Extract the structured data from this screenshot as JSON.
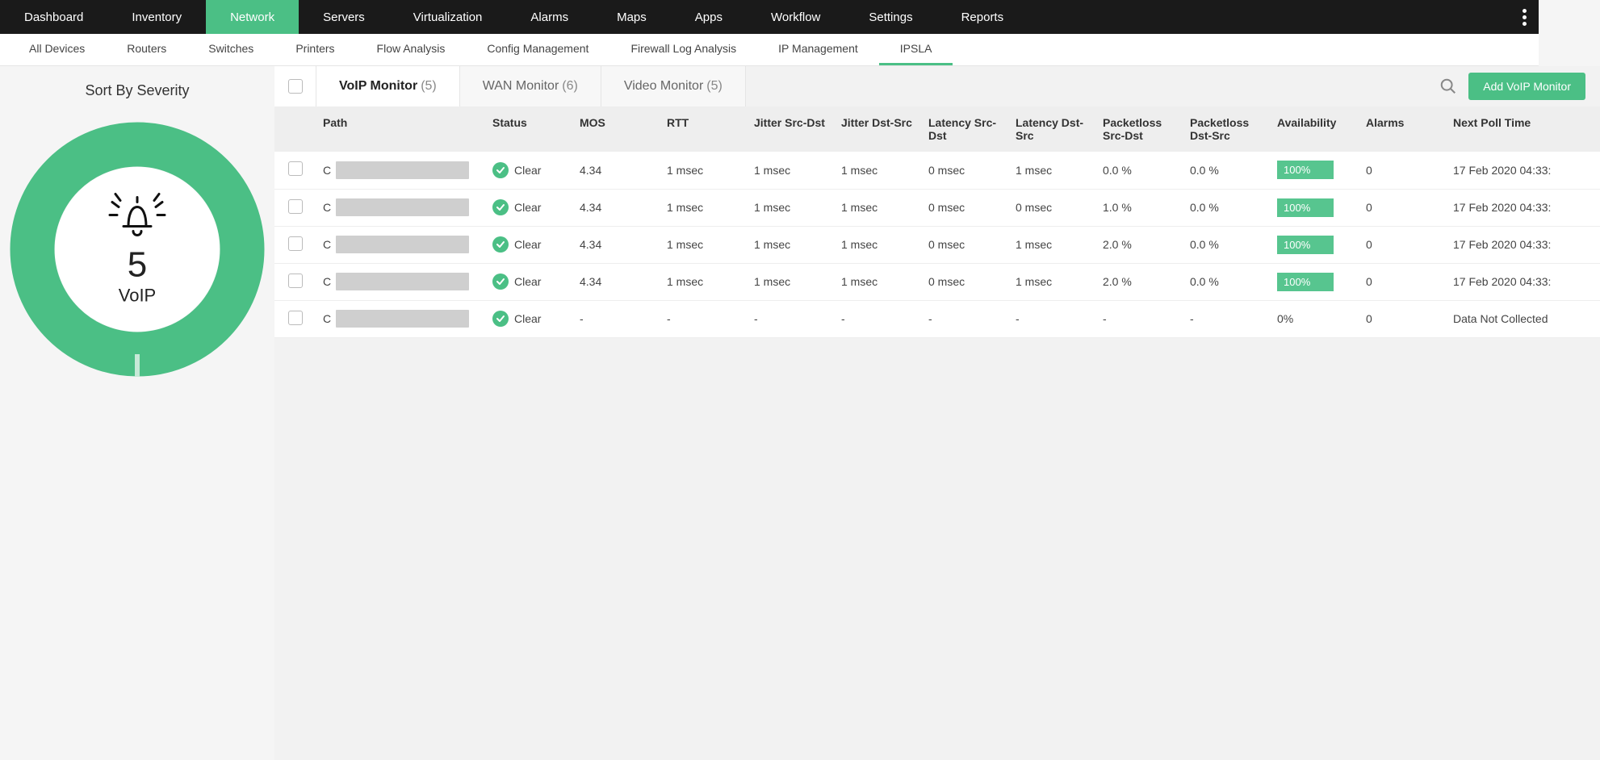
{
  "colors": {
    "accent": "#4bbf85",
    "topnav_bg": "#1a1a1a",
    "mask": "#cfcfcf",
    "avail_badge": "#57c58f"
  },
  "topnav": {
    "items": [
      "Dashboard",
      "Inventory",
      "Network",
      "Servers",
      "Virtualization",
      "Alarms",
      "Maps",
      "Apps",
      "Workflow",
      "Settings",
      "Reports"
    ],
    "active_index": 2
  },
  "subnav": {
    "items": [
      "All Devices",
      "Routers",
      "Switches",
      "Printers",
      "Flow Analysis",
      "Config Management",
      "Firewall Log Analysis",
      "IP Management",
      "IPSLA"
    ],
    "active_index": 8
  },
  "sidebar": {
    "title": "Sort By Severity",
    "donut": {
      "center_number": "5",
      "center_label": "VoIP",
      "ring_color": "#4bbf85",
      "gap_color": "#c7e9d7",
      "gap_angle_deg": 2
    }
  },
  "tabs": {
    "items": [
      {
        "label": "VoIP Monitor",
        "count": "(5)",
        "active": true
      },
      {
        "label": "WAN Monitor",
        "count": "(6)",
        "active": false
      },
      {
        "label": "Video Monitor",
        "count": "(5)",
        "active": false
      }
    ]
  },
  "add_button": "Add VoIP Monitor",
  "table": {
    "columns": [
      "Path",
      "Status",
      "MOS",
      "RTT",
      "Jitter Src-Dst",
      "Jitter Dst-Src",
      "Latency Src-Dst",
      "Latency Dst-Src",
      "Packetloss Src-Dst",
      "Packetloss Dst-Src",
      "Availability",
      "Alarms",
      "Next Poll Time"
    ],
    "rows": [
      {
        "path_lead": "C",
        "status": "Clear",
        "mos": "4.34",
        "rtt": "1 msec",
        "jsd": "1 msec",
        "jds": "1 msec",
        "lsd": "0 msec",
        "lds": "1 msec",
        "plsd": "0.0 %",
        "plds": "0.0 %",
        "avail": "100%",
        "avail_badge": true,
        "alarms": "0",
        "poll": "17 Feb 2020 04:33:"
      },
      {
        "path_lead": "C",
        "status": "Clear",
        "mos": "4.34",
        "rtt": "1 msec",
        "jsd": "1 msec",
        "jds": "1 msec",
        "lsd": "0 msec",
        "lds": "0 msec",
        "plsd": "1.0 %",
        "plds": "0.0 %",
        "avail": "100%",
        "avail_badge": true,
        "alarms": "0",
        "poll": "17 Feb 2020 04:33:"
      },
      {
        "path_lead": "C",
        "status": "Clear",
        "mos": "4.34",
        "rtt": "1 msec",
        "jsd": "1 msec",
        "jds": "1 msec",
        "lsd": "0 msec",
        "lds": "1 msec",
        "plsd": "2.0 %",
        "plds": "0.0 %",
        "avail": "100%",
        "avail_badge": true,
        "alarms": "0",
        "poll": "17 Feb 2020 04:33:"
      },
      {
        "path_lead": "C",
        "status": "Clear",
        "mos": "4.34",
        "rtt": "1 msec",
        "jsd": "1 msec",
        "jds": "1 msec",
        "lsd": "0 msec",
        "lds": "1 msec",
        "plsd": "2.0 %",
        "plds": "0.0 %",
        "avail": "100%",
        "avail_badge": true,
        "alarms": "0",
        "poll": "17 Feb 2020 04:33:"
      },
      {
        "path_lead": "C",
        "status": "Clear",
        "mos": "-",
        "rtt": "-",
        "jsd": "-",
        "jds": "-",
        "lsd": "-",
        "lds": "-",
        "plsd": "-",
        "plds": "-",
        "avail": "0%",
        "avail_badge": false,
        "alarms": "0",
        "poll": "Data Not Collected"
      }
    ]
  }
}
